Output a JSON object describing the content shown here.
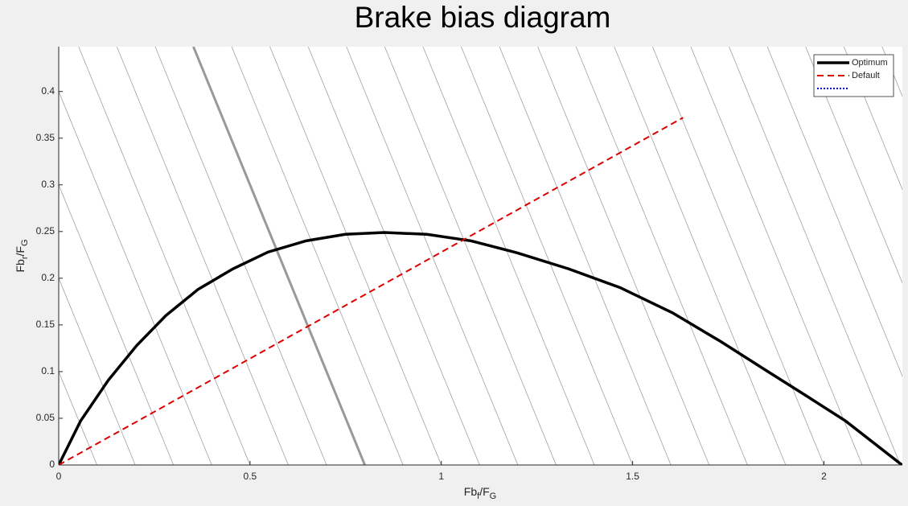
{
  "chart_data": {
    "type": "line",
    "title": "Brake bias diagram",
    "xlabel": {
      "main": "Fb",
      "sub": "f",
      "mid": "/F",
      "sub2": "G"
    },
    "ylabel": {
      "main": "Fb",
      "sub": "r",
      "mid": "/F",
      "sub2": "G"
    },
    "xlim": [
      0,
      2.205
    ],
    "ylim": [
      0,
      0.448
    ],
    "xticks": [
      0,
      0.5,
      1,
      1.5,
      2
    ],
    "yticks": [
      0,
      0.05,
      0.1,
      0.15,
      0.2,
      0.25,
      0.3,
      0.35,
      0.4
    ],
    "decel_lines": [
      0.1,
      0.2,
      0.3,
      0.4,
      0.5,
      0.6,
      0.7,
      0.8,
      0.9,
      1.0,
      1.1,
      1.2,
      1.3,
      1.4,
      1.5,
      1.6,
      1.7,
      1.8,
      1.9,
      2.0,
      2.1,
      2.2,
      2.3,
      2.4,
      2.5,
      2.6
    ],
    "decel_color": "#a0a0a0",
    "highlight_line": 0.8,
    "highlight_color": "#999999",
    "legend": "upper right",
    "series": [
      {
        "name": "Optimum",
        "color": "#000000",
        "style": "solid",
        "x": [
          0,
          0.057,
          0.13,
          0.204,
          0.28,
          0.364,
          0.455,
          0.547,
          0.646,
          0.749,
          0.851,
          0.962,
          1.078,
          1.2,
          1.333,
          1.467,
          1.604,
          1.731,
          1.846,
          1.958,
          2.057,
          2.204
        ],
        "values": [
          0,
          0.047,
          0.091,
          0.128,
          0.16,
          0.188,
          0.21,
          0.228,
          0.24,
          0.247,
          0.249,
          0.247,
          0.24,
          0.227,
          0.21,
          0.19,
          0.163,
          0.132,
          0.102,
          0.073,
          0.047,
          0
        ]
      },
      {
        "name": "Default",
        "color": "#dd0000",
        "style": "dashed",
        "x": [
          0,
          1.632
        ],
        "values": [
          0,
          0.372
        ]
      },
      {
        "color": "#0000cc",
        "style": "dotted"
      }
    ]
  }
}
